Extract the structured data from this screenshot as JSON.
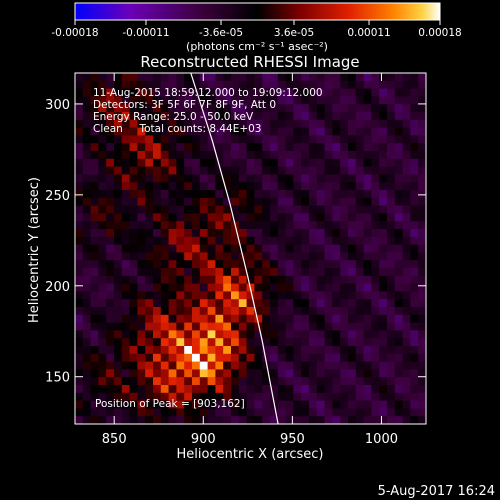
{
  "chart_data": {
    "type": "heatmap",
    "title": "Reconstructed RHESSI Image",
    "xlabel": "Heliocentric X (arcsec)",
    "ylabel": "Heliocentric Y (arcsec)",
    "xlim": [
      828,
      1025
    ],
    "ylim": [
      124,
      317
    ],
    "x_ticks": [
      850,
      900,
      950,
      1000
    ],
    "y_ticks": [
      150,
      200,
      250,
      300
    ],
    "colorbar": {
      "ticks": [
        "-0.00018",
        "-0.00011",
        "-3.6e-05",
        "3.6e-05",
        "0.00011",
        "0.00018"
      ],
      "tick_values": [
        -0.00018,
        -0.00011,
        -3.6e-05,
        3.6e-05,
        0.00011,
        0.00018
      ],
      "range": [
        -0.00018,
        0.00018
      ],
      "unit_label": "(photons cm⁻² s⁻¹ asec⁻²)",
      "colormap": [
        "#0000ff",
        "#6a00b8",
        "#3a003a",
        "#000000",
        "#800000",
        "#e02000",
        "#ff8000",
        "#ffd040",
        "#ffffff"
      ]
    },
    "annotations": [
      "11-Aug-2015 18:59:12.000 to 19:09:12.000",
      "Detectors: 3F 5F 6F 7F 8F 9F, Att 0",
      "Energy Range: 25.0 - 50.0 keV",
      "Clean     Total counts: 8.44E+03"
    ],
    "peak_label": "Position of Peak = [903,162]",
    "peak": [
      903,
      162
    ],
    "sources": [
      {
        "x": 903,
        "y": 162,
        "amplitude": 0.00018
      },
      {
        "x": 918,
        "y": 195,
        "amplitude": 0.00014
      },
      {
        "x": 875,
        "y": 178,
        "amplitude": 9e-05
      },
      {
        "x": 870,
        "y": 272,
        "amplitude": 9e-05
      },
      {
        "x": 850,
        "y": 300,
        "amplitude": 8e-05
      },
      {
        "x": 888,
        "y": 222,
        "amplitude": 8e-05
      },
      {
        "x": 915,
        "y": 240,
        "amplitude": 6e-05
      },
      {
        "x": 880,
        "y": 145,
        "amplitude": 9e-05
      },
      {
        "x": 845,
        "y": 240,
        "amplitude": 5e-05
      },
      {
        "x": 845,
        "y": 150,
        "amplitude": 5e-05
      }
    ],
    "limb_curve": [
      [
        893,
        317
      ],
      [
        905,
        280
      ],
      [
        915,
        245
      ],
      [
        925,
        205
      ],
      [
        933,
        170
      ],
      [
        942,
        124
      ]
    ]
  },
  "footer_date": "5-Aug-2017 16:24"
}
